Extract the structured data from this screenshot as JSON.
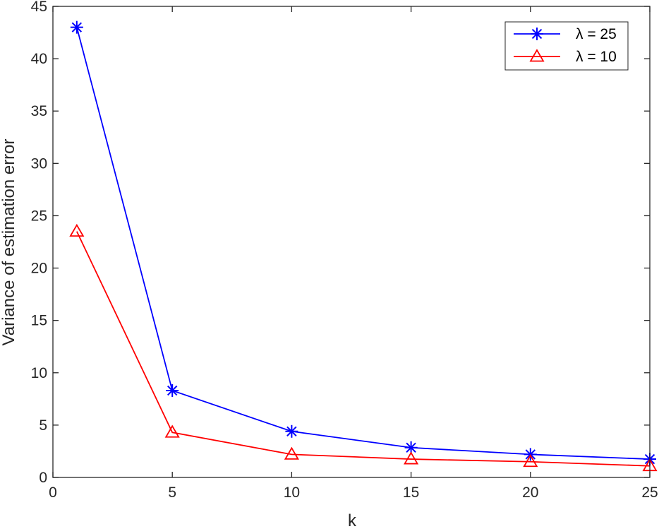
{
  "chart_data": {
    "type": "line",
    "title": "",
    "xlabel": "k",
    "ylabel": "Variance of estimation error",
    "xlim": [
      0,
      25
    ],
    "ylim": [
      0,
      45
    ],
    "xticks": [
      0,
      5,
      10,
      15,
      20,
      25
    ],
    "yticks": [
      0,
      5,
      10,
      15,
      20,
      25,
      30,
      35,
      40,
      45
    ],
    "grid": false,
    "legend_position": "top-right",
    "series": [
      {
        "name": "λ = 25",
        "marker": "asterisk",
        "color": "#0000ff",
        "x": [
          1,
          5,
          10,
          15,
          20,
          25
        ],
        "values": [
          43.0,
          8.3,
          4.4,
          2.85,
          2.2,
          1.75
        ]
      },
      {
        "name": "λ = 10",
        "marker": "triangle",
        "color": "#ff0000",
        "x": [
          1,
          5,
          10,
          15,
          20,
          25
        ],
        "values": [
          23.5,
          4.3,
          2.2,
          1.75,
          1.5,
          1.1
        ]
      }
    ]
  }
}
